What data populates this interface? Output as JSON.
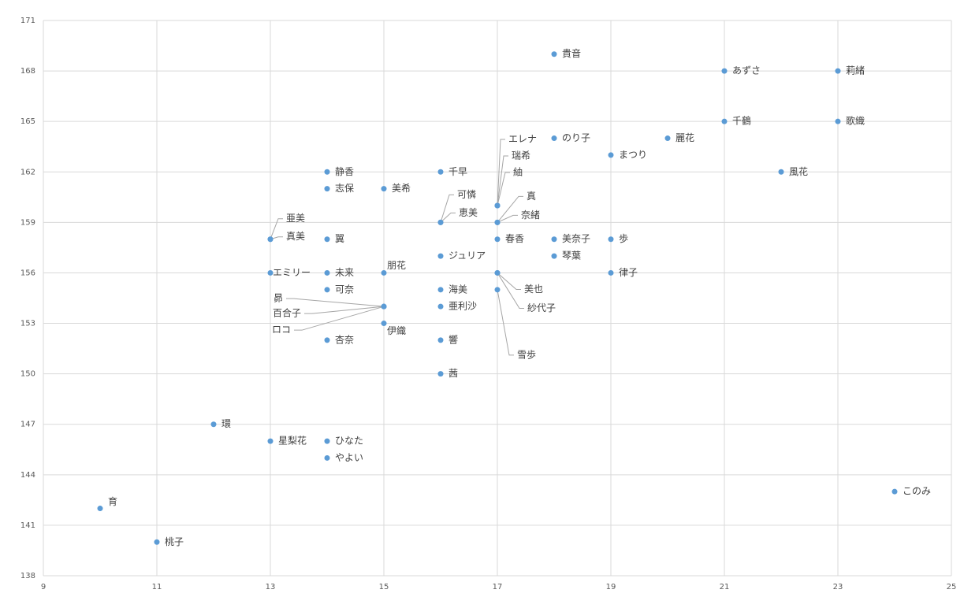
{
  "chart_data": {
    "type": "scatter",
    "x": [
      18,
      21,
      23,
      21,
      23,
      18,
      20,
      19,
      22,
      14,
      16,
      14,
      15,
      17,
      17,
      17,
      17,
      17,
      16,
      16,
      13,
      13,
      14,
      17,
      18,
      19,
      16,
      18,
      13,
      14,
      15,
      17,
      17,
      19,
      14,
      16,
      17,
      15,
      15,
      15,
      16,
      15,
      14,
      16,
      16,
      12,
      13,
      14,
      14,
      24,
      10,
      11
    ],
    "values": [
      169,
      168,
      168,
      165,
      165,
      164,
      164,
      163,
      162,
      162,
      162,
      161,
      161,
      160,
      160,
      160,
      159,
      159,
      159,
      159,
      158,
      158,
      158,
      158,
      158,
      158,
      157,
      157,
      156,
      156,
      156,
      156,
      156,
      156,
      155,
      155,
      155,
      154,
      154,
      154,
      154,
      153,
      152,
      152,
      150,
      147,
      146,
      146,
      145,
      143,
      142,
      140
    ],
    "labels": [
      "貴音",
      "あずさ",
      "莉緒",
      "千鶴",
      "歌織",
      "のり子",
      "麗花",
      "まつり",
      "風花",
      "静香",
      "千早",
      "志保",
      "美希",
      "エレナ",
      "瑞希",
      "紬",
      "真",
      "奈緒",
      "可憐",
      "恵美",
      "亜美",
      "真美",
      "翼",
      "春香",
      "美奈子",
      "歩",
      "ジュリア",
      "琴葉",
      "エミリー",
      "未来",
      "朋花",
      "美也",
      "紗代子",
      "律子",
      "可奈",
      "海美",
      "雪歩",
      "昴",
      "百合子",
      "ロコ",
      "亜利沙",
      "伊織",
      "杏奈",
      "響",
      "茜",
      "環",
      "星梨花",
      "ひなた",
      "やよい",
      "このみ",
      "育",
      "桃子"
    ],
    "color": "#5b9bd5",
    "xlim": [
      9,
      25
    ],
    "xticks": [
      9,
      11,
      13,
      15,
      17,
      19,
      21,
      23,
      25
    ],
    "ylim": [
      138,
      171
    ],
    "yticks": [
      138,
      141,
      144,
      147,
      150,
      153,
      156,
      159,
      162,
      165,
      168,
      171
    ],
    "grid": true
  }
}
